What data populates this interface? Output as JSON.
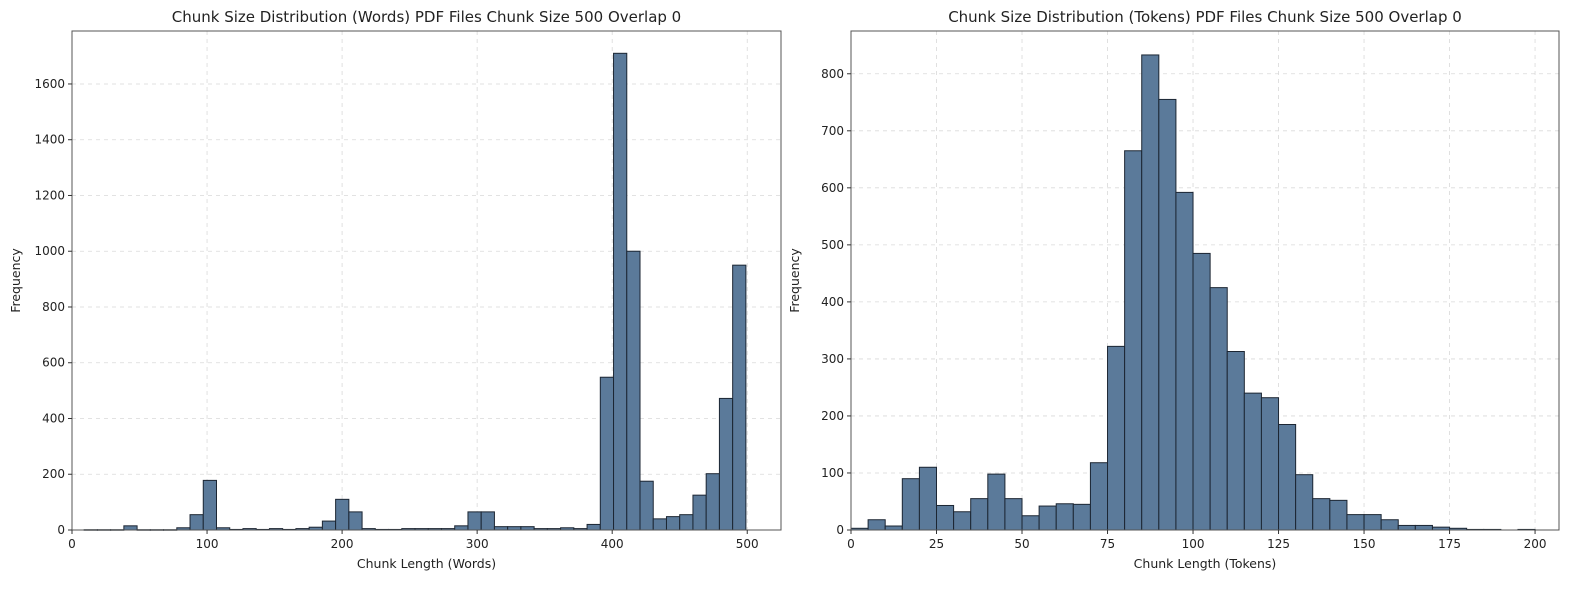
{
  "chart_data": [
    {
      "type": "bar",
      "title": "Chunk Size Distribution (Words) PDF Files Chunk Size 500 Overlap 0",
      "xlabel": "Chunk Length (Words)",
      "ylabel": "Frequency",
      "xlim": [
        0,
        525
      ],
      "ylim": [
        0,
        1790
      ],
      "xticks": [
        0,
        100,
        200,
        300,
        400,
        500
      ],
      "yticks": [
        0,
        200,
        400,
        600,
        800,
        1000,
        1200,
        1400,
        1600
      ],
      "bin_start": 9,
      "bin_width": 9.8,
      "values": [
        1,
        1,
        1,
        15,
        1,
        1,
        1,
        8,
        55,
        178,
        8,
        2,
        5,
        2,
        5,
        2,
        5,
        10,
        32,
        110,
        65,
        5,
        2,
        2,
        5,
        5,
        5,
        5,
        15,
        65,
        65,
        12,
        12,
        12,
        5,
        5,
        8,
        5,
        20,
        548,
        1710,
        1000,
        175,
        40,
        48,
        55,
        125,
        202,
        472,
        950
      ],
      "grid": true,
      "color": "#5b7a9a",
      "edge_color": "#1c2633"
    },
    {
      "type": "bar",
      "title": "Chunk Size Distribution (Tokens) PDF Files Chunk Size 500 Overlap 0",
      "xlabel": "Chunk Length (Tokens)",
      "ylabel": "Frequency",
      "xlim": [
        0,
        207
      ],
      "ylim": [
        0,
        875
      ],
      "xticks": [
        0,
        25,
        50,
        75,
        100,
        125,
        150,
        175,
        200
      ],
      "yticks": [
        0,
        100,
        200,
        300,
        400,
        500,
        600,
        700,
        800
      ],
      "bin_start": 0,
      "bin_width": 5.0,
      "values": [
        3,
        18,
        7,
        90,
        110,
        43,
        32,
        55,
        98,
        55,
        25,
        42,
        46,
        45,
        118,
        322,
        665,
        833,
        755,
        592,
        485,
        425,
        313,
        240,
        232,
        185,
        97,
        55,
        52,
        27,
        27,
        18,
        8,
        8,
        5,
        3,
        1,
        1,
        0,
        1
      ],
      "grid": true,
      "color": "#5b7a9a",
      "edge_color": "#1c2633"
    }
  ]
}
